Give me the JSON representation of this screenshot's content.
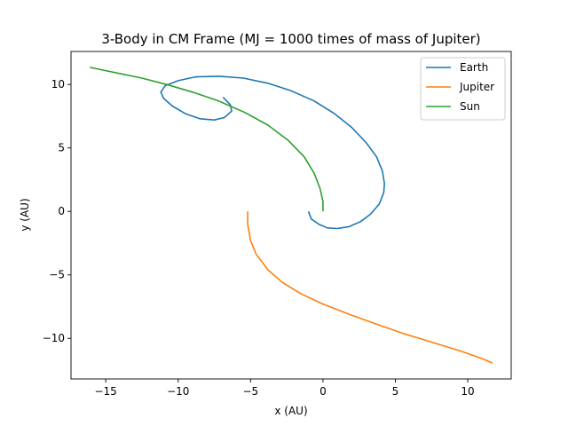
{
  "chart_data": {
    "type": "line",
    "title": "3-Body  in CM Frame (MJ = 1000 times of mass of Jupiter)",
    "xlabel": "x (AU)",
    "ylabel": "y (AU)",
    "xlim": [
      -17.4,
      13.0
    ],
    "ylim": [
      -13.2,
      12.6
    ],
    "xticks": [
      -15,
      -10,
      -5,
      0,
      5,
      10
    ],
    "yticks": [
      -10,
      -5,
      0,
      5,
      10
    ],
    "grid": false,
    "legend": "top-right",
    "series": [
      {
        "name": "Earth",
        "color": "#1f77b4",
        "points": [
          [
            -1.0,
            0.0
          ],
          [
            -0.8,
            -0.6
          ],
          [
            -0.3,
            -1.0
          ],
          [
            0.3,
            -1.3
          ],
          [
            1.0,
            -1.35
          ],
          [
            1.8,
            -1.2
          ],
          [
            2.6,
            -0.8
          ],
          [
            3.3,
            -0.2
          ],
          [
            3.9,
            0.6
          ],
          [
            4.2,
            1.5
          ],
          [
            4.25,
            2.2
          ],
          [
            4.1,
            3.2
          ],
          [
            3.7,
            4.3
          ],
          [
            3.0,
            5.4
          ],
          [
            2.0,
            6.6
          ],
          [
            0.8,
            7.7
          ],
          [
            -0.6,
            8.7
          ],
          [
            -2.2,
            9.5
          ],
          [
            -3.8,
            10.1
          ],
          [
            -5.5,
            10.5
          ],
          [
            -7.2,
            10.65
          ],
          [
            -8.8,
            10.6
          ],
          [
            -10.0,
            10.3
          ],
          [
            -10.9,
            9.9
          ],
          [
            -11.2,
            9.4
          ],
          [
            -11.0,
            8.9
          ],
          [
            -10.4,
            8.3
          ],
          [
            -9.5,
            7.7
          ],
          [
            -8.5,
            7.3
          ],
          [
            -7.5,
            7.2
          ],
          [
            -6.8,
            7.4
          ],
          [
            -6.3,
            7.9
          ],
          [
            -6.4,
            8.4
          ],
          [
            -6.9,
            9.0
          ]
        ]
      },
      {
        "name": "Jupiter",
        "color": "#ff7f0e",
        "points": [
          [
            -5.2,
            0.0
          ],
          [
            -5.2,
            -1.0
          ],
          [
            -5.0,
            -2.3
          ],
          [
            -4.6,
            -3.4
          ],
          [
            -3.8,
            -4.6
          ],
          [
            -2.8,
            -5.6
          ],
          [
            -1.5,
            -6.5
          ],
          [
            0.0,
            -7.3
          ],
          [
            1.8,
            -8.1
          ],
          [
            3.5,
            -8.8
          ],
          [
            5.5,
            -9.6
          ],
          [
            7.5,
            -10.3
          ],
          [
            9.5,
            -11.0
          ],
          [
            11.0,
            -11.6
          ],
          [
            11.7,
            -11.95
          ]
        ]
      },
      {
        "name": "Sun",
        "color": "#2ca02c",
        "points": [
          [
            0.0,
            0.0
          ],
          [
            0.0,
            0.8
          ],
          [
            -0.2,
            1.8
          ],
          [
            -0.6,
            3.0
          ],
          [
            -1.3,
            4.3
          ],
          [
            -2.4,
            5.6
          ],
          [
            -3.8,
            6.8
          ],
          [
            -5.4,
            7.8
          ],
          [
            -7.2,
            8.7
          ],
          [
            -9.0,
            9.4
          ],
          [
            -10.8,
            10.0
          ],
          [
            -12.5,
            10.5
          ],
          [
            -14.2,
            10.9
          ],
          [
            -16.1,
            11.35
          ]
        ]
      }
    ]
  }
}
